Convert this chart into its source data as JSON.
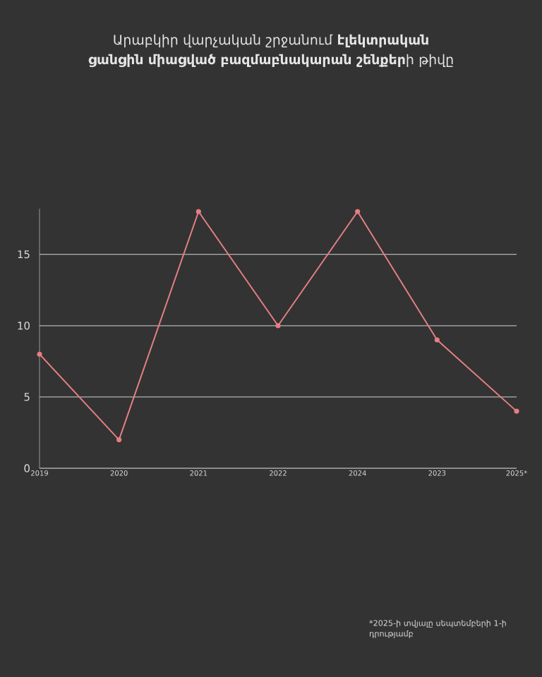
{
  "chart_data": {
    "type": "line",
    "title": "Արաբկիր վարչական շրջանում **էլեկտրական ցանցին միացված բազմաբնակարան շենքեր**ի թիվը",
    "categories": [
      "2019",
      "2020",
      "2021",
      "2022",
      "2024",
      "2023",
      "2025*"
    ],
    "values": [
      8,
      2,
      18,
      10,
      18,
      9,
      4
    ],
    "color": "#e57f84",
    "ylim": [
      0,
      18.2
    ],
    "yticks": [
      0,
      5,
      10,
      15
    ],
    "grid": "y",
    "marker": "circle",
    "annotations": [
      "*2025-ի տվյալը սեպտեմբերի 1-ի դրությամբ"
    ]
  }
}
